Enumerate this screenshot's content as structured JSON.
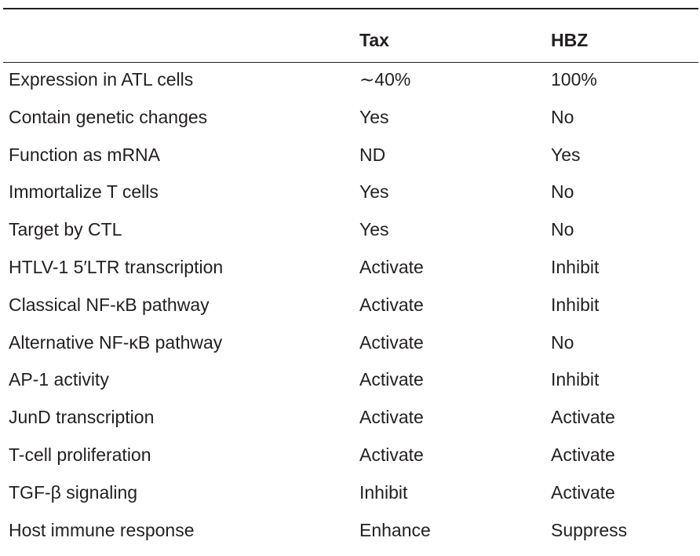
{
  "table": {
    "headers": {
      "label": "",
      "tax": "Tax",
      "hbz": "HBZ"
    },
    "rows": [
      {
        "label": "Expression in ATL cells",
        "tax": "∼40%",
        "hbz": "100%"
      },
      {
        "label": "Contain genetic changes",
        "tax": "Yes",
        "hbz": "No"
      },
      {
        "label": "Function as mRNA",
        "tax": "ND",
        "hbz": "Yes"
      },
      {
        "label": "Immortalize T cells",
        "tax": "Yes",
        "hbz": "No"
      },
      {
        "label": "Target by CTL",
        "tax": "Yes",
        "hbz": "No"
      },
      {
        "label": "HTLV-1 5′LTR transcription",
        "tax": "Activate",
        "hbz": "Inhibit"
      },
      {
        "label": "Classical NF-κB pathway",
        "tax": "Activate",
        "hbz": "Inhibit"
      },
      {
        "label": "Alternative NF-κB pathway",
        "tax": "Activate",
        "hbz": "No"
      },
      {
        "label": "AP-1 activity",
        "tax": "Activate",
        "hbz": "Inhibit"
      },
      {
        "label": "JunD transcription",
        "tax": "Activate",
        "hbz": "Activate"
      },
      {
        "label": "T-cell proliferation",
        "tax": "Activate",
        "hbz": "Activate"
      },
      {
        "label": "TGF-β signaling",
        "tax": "Inhibit",
        "hbz": "Activate"
      },
      {
        "label": "Host immune response",
        "tax": "Enhance",
        "hbz": "Suppress"
      }
    ]
  }
}
